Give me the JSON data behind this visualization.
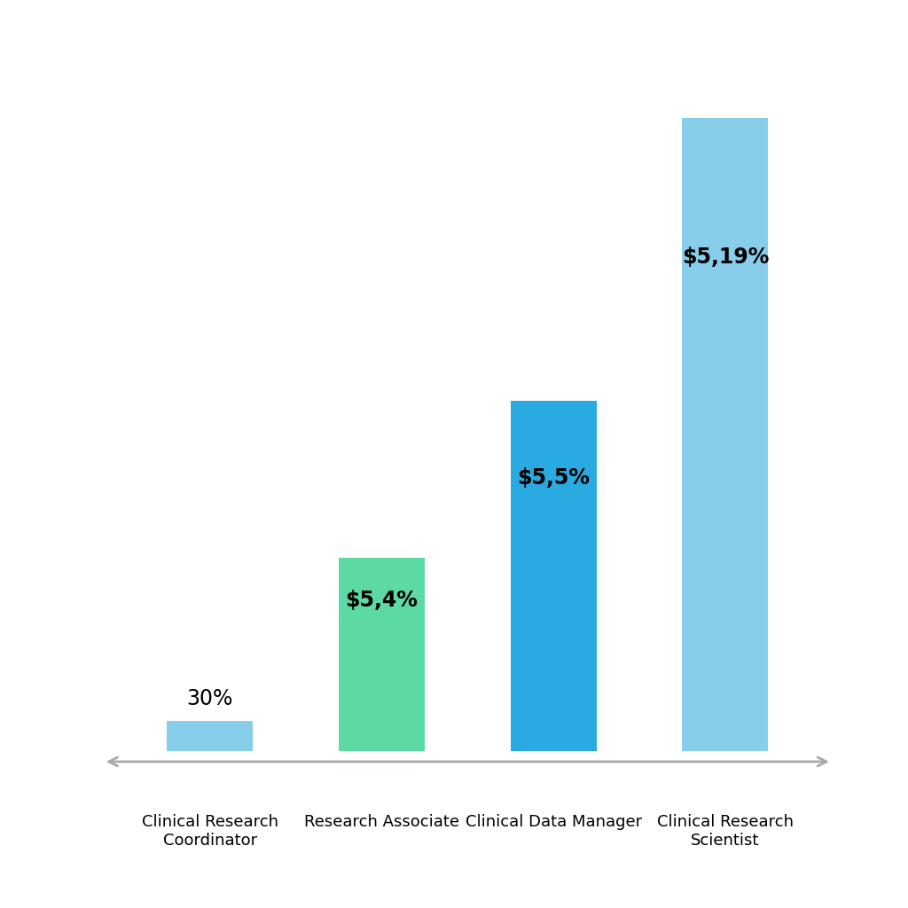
{
  "categories": [
    "Clinical Research\nCoordinator",
    "Research Associate",
    "Clinical Data Manager",
    "Clinical Research\nScientist"
  ],
  "values": [
    0.5,
    3.2,
    5.8,
    10.5
  ],
  "bar_colors": [
    "#87CEEB",
    "#5DD9A4",
    "#29ABE2",
    "#87CEEB"
  ],
  "bar_labels": [
    "30%",
    "$5,4%",
    "$5,5%",
    "$5,19%"
  ],
  "label_inside": [
    false,
    true,
    true,
    true
  ],
  "label_fontweight": [
    "normal",
    "bold",
    "bold",
    "bold"
  ],
  "background_color": "#ffffff",
  "label_fontsize": 17,
  "tick_fontsize": 13,
  "bar_width": 0.5,
  "ylim_max": 12.0,
  "arrow_color": "#aaaaaa",
  "arrow_lw": 2.0
}
